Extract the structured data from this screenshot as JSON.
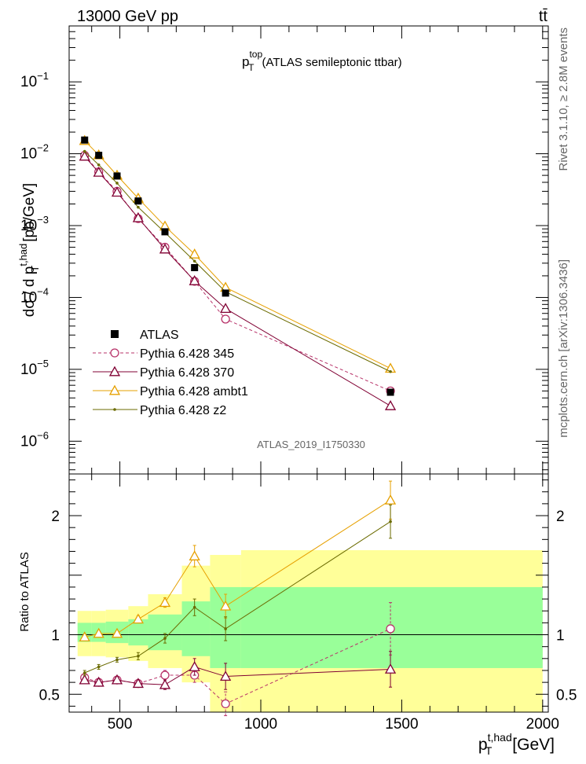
{
  "header": {
    "left": "13000 GeV pp",
    "right": "tt̄"
  },
  "side_labels": {
    "rivet": "Rivet 3.1.10, ≥ 2.8M events",
    "mcplots": "mcplots.cern.ch [arXiv:1306.3436]"
  },
  "chart_data": [
    {
      "type": "scatter",
      "panel": "main",
      "title": "p_T^top (ATLAS semileptonic ttbar)",
      "title_parts": {
        "p": "p",
        "sup": "top",
        "sub": "T",
        "rest": "(ATLAS semileptonic ttbar)"
      },
      "ylabel": "dσ / d p_T^{t,had} [pb/GeV]",
      "ylabel_parts": {
        "main": "dσ / d p",
        "sup": "t,had",
        "sub": "T",
        "unit": "[pb/GeV]"
      },
      "yscale": "log",
      "ylim": [
        3.5e-07,
        0.6
      ],
      "xlim": [
        320,
        2020
      ],
      "yticks": [
        {
          "value": 0.1,
          "mant": "10",
          "exp": "−1"
        },
        {
          "value": 0.01,
          "mant": "10",
          "exp": "−2"
        },
        {
          "value": 0.001,
          "mant": "10",
          "exp": "−3"
        },
        {
          "value": 0.0001,
          "mant": "10",
          "exp": "−4"
        },
        {
          "value": 1e-05,
          "mant": "10",
          "exp": "−5"
        },
        {
          "value": 1e-06,
          "mant": "10",
          "exp": "−6"
        }
      ],
      "watermark": "ATLAS_2019_I1750330",
      "legend_placement": "lower-left",
      "x": [
        375,
        425,
        490,
        565,
        660,
        765,
        875,
        1460
      ],
      "series": [
        {
          "name": "ATLAS",
          "color": "#000000",
          "marker": "square",
          "line": "none",
          "values": [
            0.0155,
            0.0095,
            0.0049,
            0.0022,
            0.00082,
            0.00026,
            0.000115,
            4.8e-06
          ]
        },
        {
          "name": "Pythia 6.428 345",
          "color": "#b8336a",
          "marker": "circle",
          "line": "dashed",
          "values": [
            0.0095,
            0.0056,
            0.003,
            0.00125,
            0.0005,
            0.000168,
            5e-05,
            5e-06
          ]
        },
        {
          "name": "Pythia 6.428 370",
          "color": "#800033",
          "marker": "triangle",
          "line": "solid",
          "values": [
            0.0092,
            0.0055,
            0.0029,
            0.00128,
            0.00047,
            0.00017,
            7e-05,
            3.1e-06
          ]
        },
        {
          "name": "Pythia 6.428 ambt1",
          "color": "#e6a000",
          "marker": "triangle",
          "line": "solid",
          "values": [
            0.0152,
            0.0096,
            0.005,
            0.0024,
            0.00098,
            0.0004,
            0.000138,
            1.03e-05
          ]
        },
        {
          "name": "Pythia 6.428 z2",
          "color": "#6b6b00",
          "marker": "dot",
          "line": "solid",
          "values": [
            0.0108,
            0.007,
            0.0039,
            0.0018,
            0.0008,
            0.00032,
            0.00012,
            9.3e-06
          ]
        }
      ]
    },
    {
      "type": "line",
      "panel": "ratio",
      "ylabel": "Ratio to ATLAS",
      "ylim": [
        0.35,
        2.35
      ],
      "xlim": [
        320,
        2020
      ],
      "xlabel": "p_T^{t,had} [GeV]",
      "xlabel_parts": {
        "main": "p",
        "sup": "t,had",
        "sub": "T",
        "unit": "[GeV]"
      },
      "xticks": [
        500,
        1000,
        1500,
        2000
      ],
      "yticks": [
        0.5,
        1,
        2
      ],
      "ytick_labels": [
        "0.5",
        "1",
        "2"
      ],
      "bins": [
        350,
        400,
        450,
        530,
        600,
        720,
        820,
        930,
        2000
      ],
      "band_inner": [
        [
          0.94,
          1.1
        ],
        [
          0.94,
          1.1
        ],
        [
          0.93,
          1.11
        ],
        [
          0.91,
          1.13
        ],
        [
          0.87,
          1.17
        ],
        [
          0.82,
          1.28
        ],
        [
          0.72,
          1.4
        ],
        [
          0.72,
          1.4
        ]
      ],
      "band_outer": [
        [
          0.82,
          1.2
        ],
        [
          0.82,
          1.2
        ],
        [
          0.81,
          1.21
        ],
        [
          0.78,
          1.24
        ],
        [
          0.72,
          1.34
        ],
        [
          0.6,
          1.58
        ],
        [
          0.35,
          1.67
        ],
        [
          0.35,
          1.71
        ]
      ],
      "x": [
        375,
        425,
        490,
        565,
        660,
        765,
        875,
        1460
      ],
      "series": [
        {
          "name": "Pythia 6.428 345",
          "color": "#b8336a",
          "marker": "circle",
          "line": "dashed",
          "values": [
            0.64,
            0.6,
            0.62,
            0.59,
            0.66,
            0.66,
            0.42,
            1.05
          ],
          "errors": [
            0.02,
            0.02,
            0.02,
            0.03,
            0.04,
            0.06,
            0.1,
            0.22
          ]
        },
        {
          "name": "Pythia 6.428 370",
          "color": "#800033",
          "marker": "triangle",
          "line": "solid",
          "values": [
            0.62,
            0.6,
            0.62,
            0.59,
            0.58,
            0.73,
            0.65,
            0.71
          ],
          "errors": [
            0.02,
            0.02,
            0.02,
            0.03,
            0.04,
            0.07,
            0.11,
            0.15
          ]
        },
        {
          "name": "Pythia 6.428 ambt1",
          "color": "#e6a000",
          "marker": "triangle",
          "line": "solid",
          "values": [
            0.98,
            1.01,
            1.01,
            1.13,
            1.27,
            1.66,
            1.24,
            2.13
          ],
          "errors": [
            0.02,
            0.02,
            0.02,
            0.03,
            0.04,
            0.09,
            0.1,
            0.16
          ]
        },
        {
          "name": "Pythia 6.428 z2",
          "color": "#6b6b00",
          "marker": "dot",
          "line": "solid",
          "values": [
            0.68,
            0.73,
            0.79,
            0.82,
            0.97,
            1.23,
            1.05,
            1.95
          ],
          "errors": [
            0.02,
            0.02,
            0.02,
            0.03,
            0.04,
            0.07,
            0.1,
            0.14
          ]
        }
      ]
    }
  ]
}
